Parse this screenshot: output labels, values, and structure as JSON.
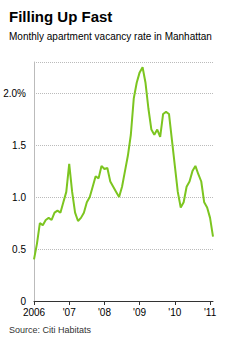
{
  "chart_data": {
    "type": "line",
    "title": "Filling Up Fast",
    "subtitle": "Monthly apartment vacancy rate in Manhattan",
    "source": "Source: Citi Habitats",
    "categories": [
      "2006",
      null,
      null,
      null,
      null,
      null,
      null,
      null,
      null,
      null,
      null,
      null,
      "'07",
      null,
      null,
      null,
      null,
      null,
      null,
      null,
      null,
      null,
      null,
      null,
      "'08",
      null,
      null,
      null,
      null,
      null,
      null,
      null,
      null,
      null,
      null,
      null,
      "'09",
      null,
      null,
      null,
      null,
      null,
      null,
      null,
      null,
      null,
      null,
      null,
      "'10",
      null,
      null,
      null,
      null,
      null,
      null,
      null,
      null,
      null,
      null,
      null,
      "'11",
      null
    ],
    "values": [
      0.4,
      0.55,
      0.75,
      0.73,
      0.78,
      0.8,
      0.78,
      0.85,
      0.87,
      0.85,
      0.95,
      1.05,
      1.32,
      1.05,
      0.85,
      0.77,
      0.8,
      0.85,
      0.95,
      1.0,
      1.1,
      1.2,
      1.18,
      1.3,
      1.27,
      1.28,
      1.15,
      1.1,
      1.05,
      1.0,
      1.1,
      1.25,
      1.4,
      1.6,
      1.95,
      2.1,
      2.2,
      2.25,
      2.1,
      1.85,
      1.65,
      1.6,
      1.65,
      1.58,
      1.8,
      1.82,
      1.8,
      1.55,
      1.3,
      1.05,
      0.9,
      0.95,
      1.1,
      1.15,
      1.25,
      1.3,
      1.22,
      1.15,
      0.95,
      0.9,
      0.8,
      0.62
    ],
    "color": "#7cc520",
    "ylim": [
      0,
      2.3
    ],
    "yticks": [
      0,
      0.5,
      {
        "value": 1,
        "label": "1.0"
      },
      1.5,
      {
        "value": 2,
        "label": "2.0%"
      }
    ],
    "grid": true
  }
}
